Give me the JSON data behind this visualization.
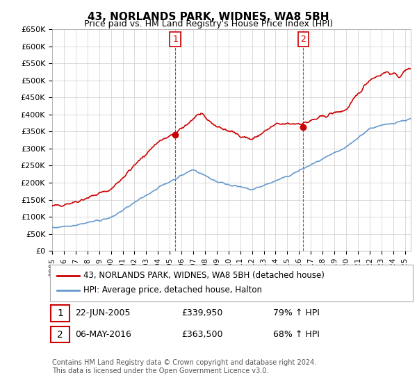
{
  "title": "43, NORLANDS PARK, WIDNES, WA8 5BH",
  "subtitle": "Price paid vs. HM Land Registry's House Price Index (HPI)",
  "ylim": [
    0,
    650000
  ],
  "yticks": [
    0,
    50000,
    100000,
    150000,
    200000,
    250000,
    300000,
    350000,
    400000,
    450000,
    500000,
    550000,
    600000,
    650000
  ],
  "ytick_labels": [
    "£0",
    "£50K",
    "£100K",
    "£150K",
    "£200K",
    "£250K",
    "£300K",
    "£350K",
    "£400K",
    "£450K",
    "£500K",
    "£550K",
    "£600K",
    "£650K"
  ],
  "legend_line1": "43, NORLANDS PARK, WIDNES, WA8 5BH (detached house)",
  "legend_line2": "HPI: Average price, detached house, Halton",
  "transaction1_date": "22-JUN-2005",
  "transaction1_price": "£339,950",
  "transaction1_hpi": "79% ↑ HPI",
  "transaction2_date": "06-MAY-2016",
  "transaction2_price": "£363,500",
  "transaction2_hpi": "68% ↑ HPI",
  "red_color": "#cc0000",
  "blue_color": "#6699cc",
  "vline_color": "#cc0000",
  "grid_color": "#cccccc",
  "background_color": "#ffffff",
  "footnote": "Contains HM Land Registry data © Crown copyright and database right 2024.\nThis data is licensed under the Open Government Licence v3.0.",
  "vline1_x": 2005.47,
  "vline2_x": 2016.35,
  "marker1_x": 2005.47,
  "marker1_y": 339950,
  "marker2_x": 2016.35,
  "marker2_y": 363500,
  "xlim_min": 1995,
  "xlim_max": 2025.5
}
